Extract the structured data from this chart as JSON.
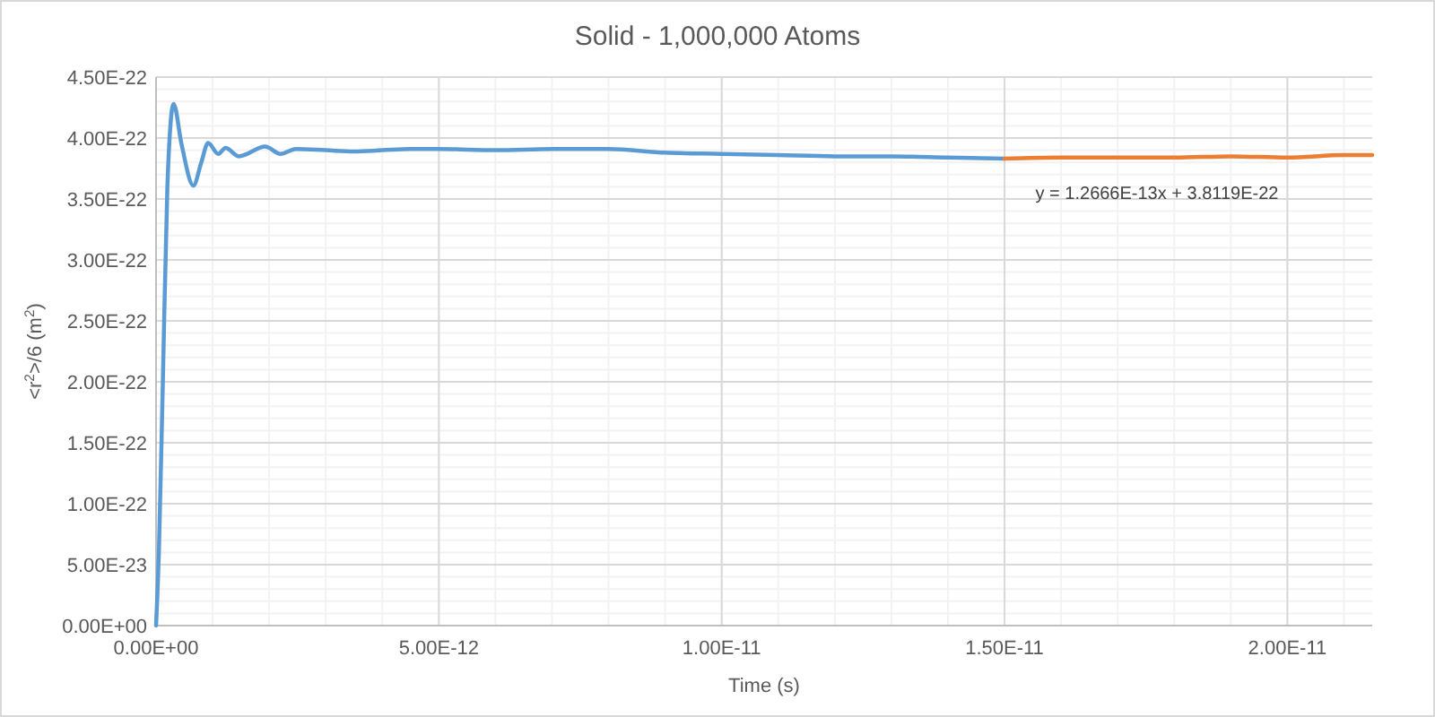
{
  "chart_data": {
    "type": "line",
    "title": "Solid - 1,000,000 Atoms",
    "xlabel": "Time (s)",
    "ylabel": "<r$^{2}$>/6 (m$^{2}$)",
    "xlim": [
      0,
      2.15e-11
    ],
    "ylim": [
      0,
      4.5e-22
    ],
    "xticks": [
      {
        "value": 0,
        "label": "0.00E+00"
      },
      {
        "value": 5e-12,
        "label": "5.00E-12"
      },
      {
        "value": 1e-11,
        "label": "1.00E-11"
      },
      {
        "value": 1.5e-11,
        "label": "1.50E-11"
      },
      {
        "value": 2e-11,
        "label": "2.00E-11"
      }
    ],
    "yticks": [
      {
        "value": 0,
        "label": "0.00E+00"
      },
      {
        "value": 5e-23,
        "label": "5.00E-23"
      },
      {
        "value": 1e-22,
        "label": "1.00E-22"
      },
      {
        "value": 1.5e-22,
        "label": "1.50E-22"
      },
      {
        "value": 2e-22,
        "label": "2.00E-22"
      },
      {
        "value": 2.5e-22,
        "label": "2.50E-22"
      },
      {
        "value": 3e-22,
        "label": "3.00E-22"
      },
      {
        "value": 3.5e-22,
        "label": "3.50E-22"
      },
      {
        "value": 4e-22,
        "label": "4.00E-22"
      },
      {
        "value": 4.5e-22,
        "label": "4.50E-22"
      }
    ],
    "grid": true,
    "annotations": [
      "y = 1.2666E-13x + 3.8119E-22"
    ],
    "series": [
      {
        "color": "#5b9bd5",
        "x": [
          0,
          5e-14,
          1.2e-13,
          2e-13,
          3.1e-13,
          4.5e-13,
          6.6e-13,
          8e-13,
          9.2e-13,
          1.1e-12,
          1.23e-12,
          1.46e-12,
          1.93e-12,
          2.2e-12,
          2.47e-12,
          3e-12,
          3.5e-12,
          4e-12,
          4.5e-12,
          5e-12,
          6e-12,
          7e-12,
          8e-12,
          9e-12,
          1e-11,
          1.1e-11,
          1.2e-11,
          1.3e-11,
          1.4e-11,
          1.5e-11
        ],
        "values": [
          0,
          6e-23,
          2e-22,
          3.6e-22,
          4.28e-22,
          3.95e-22,
          3.61e-22,
          3.8e-22,
          3.96e-22,
          3.87e-22,
          3.92e-22,
          3.85e-22,
          3.93e-22,
          3.87e-22,
          3.91e-22,
          3.9e-22,
          3.89e-22,
          3.9e-22,
          3.91e-22,
          3.91e-22,
          3.9e-22,
          3.91e-22,
          3.91e-22,
          3.88e-22,
          3.87e-22,
          3.86e-22,
          3.85e-22,
          3.85e-22,
          3.84e-22,
          3.83e-22
        ]
      },
      {
        "color": "#ed7d31",
        "x": [
          1.5e-11,
          1.6e-11,
          1.7e-11,
          1.8e-11,
          1.9e-11,
          2e-11,
          2.1e-11,
          2.15e-11
        ],
        "values": [
          3.83e-22,
          3.84e-22,
          3.84e-22,
          3.84e-22,
          3.85e-22,
          3.84e-22,
          3.86e-22,
          3.86e-22
        ]
      }
    ]
  }
}
